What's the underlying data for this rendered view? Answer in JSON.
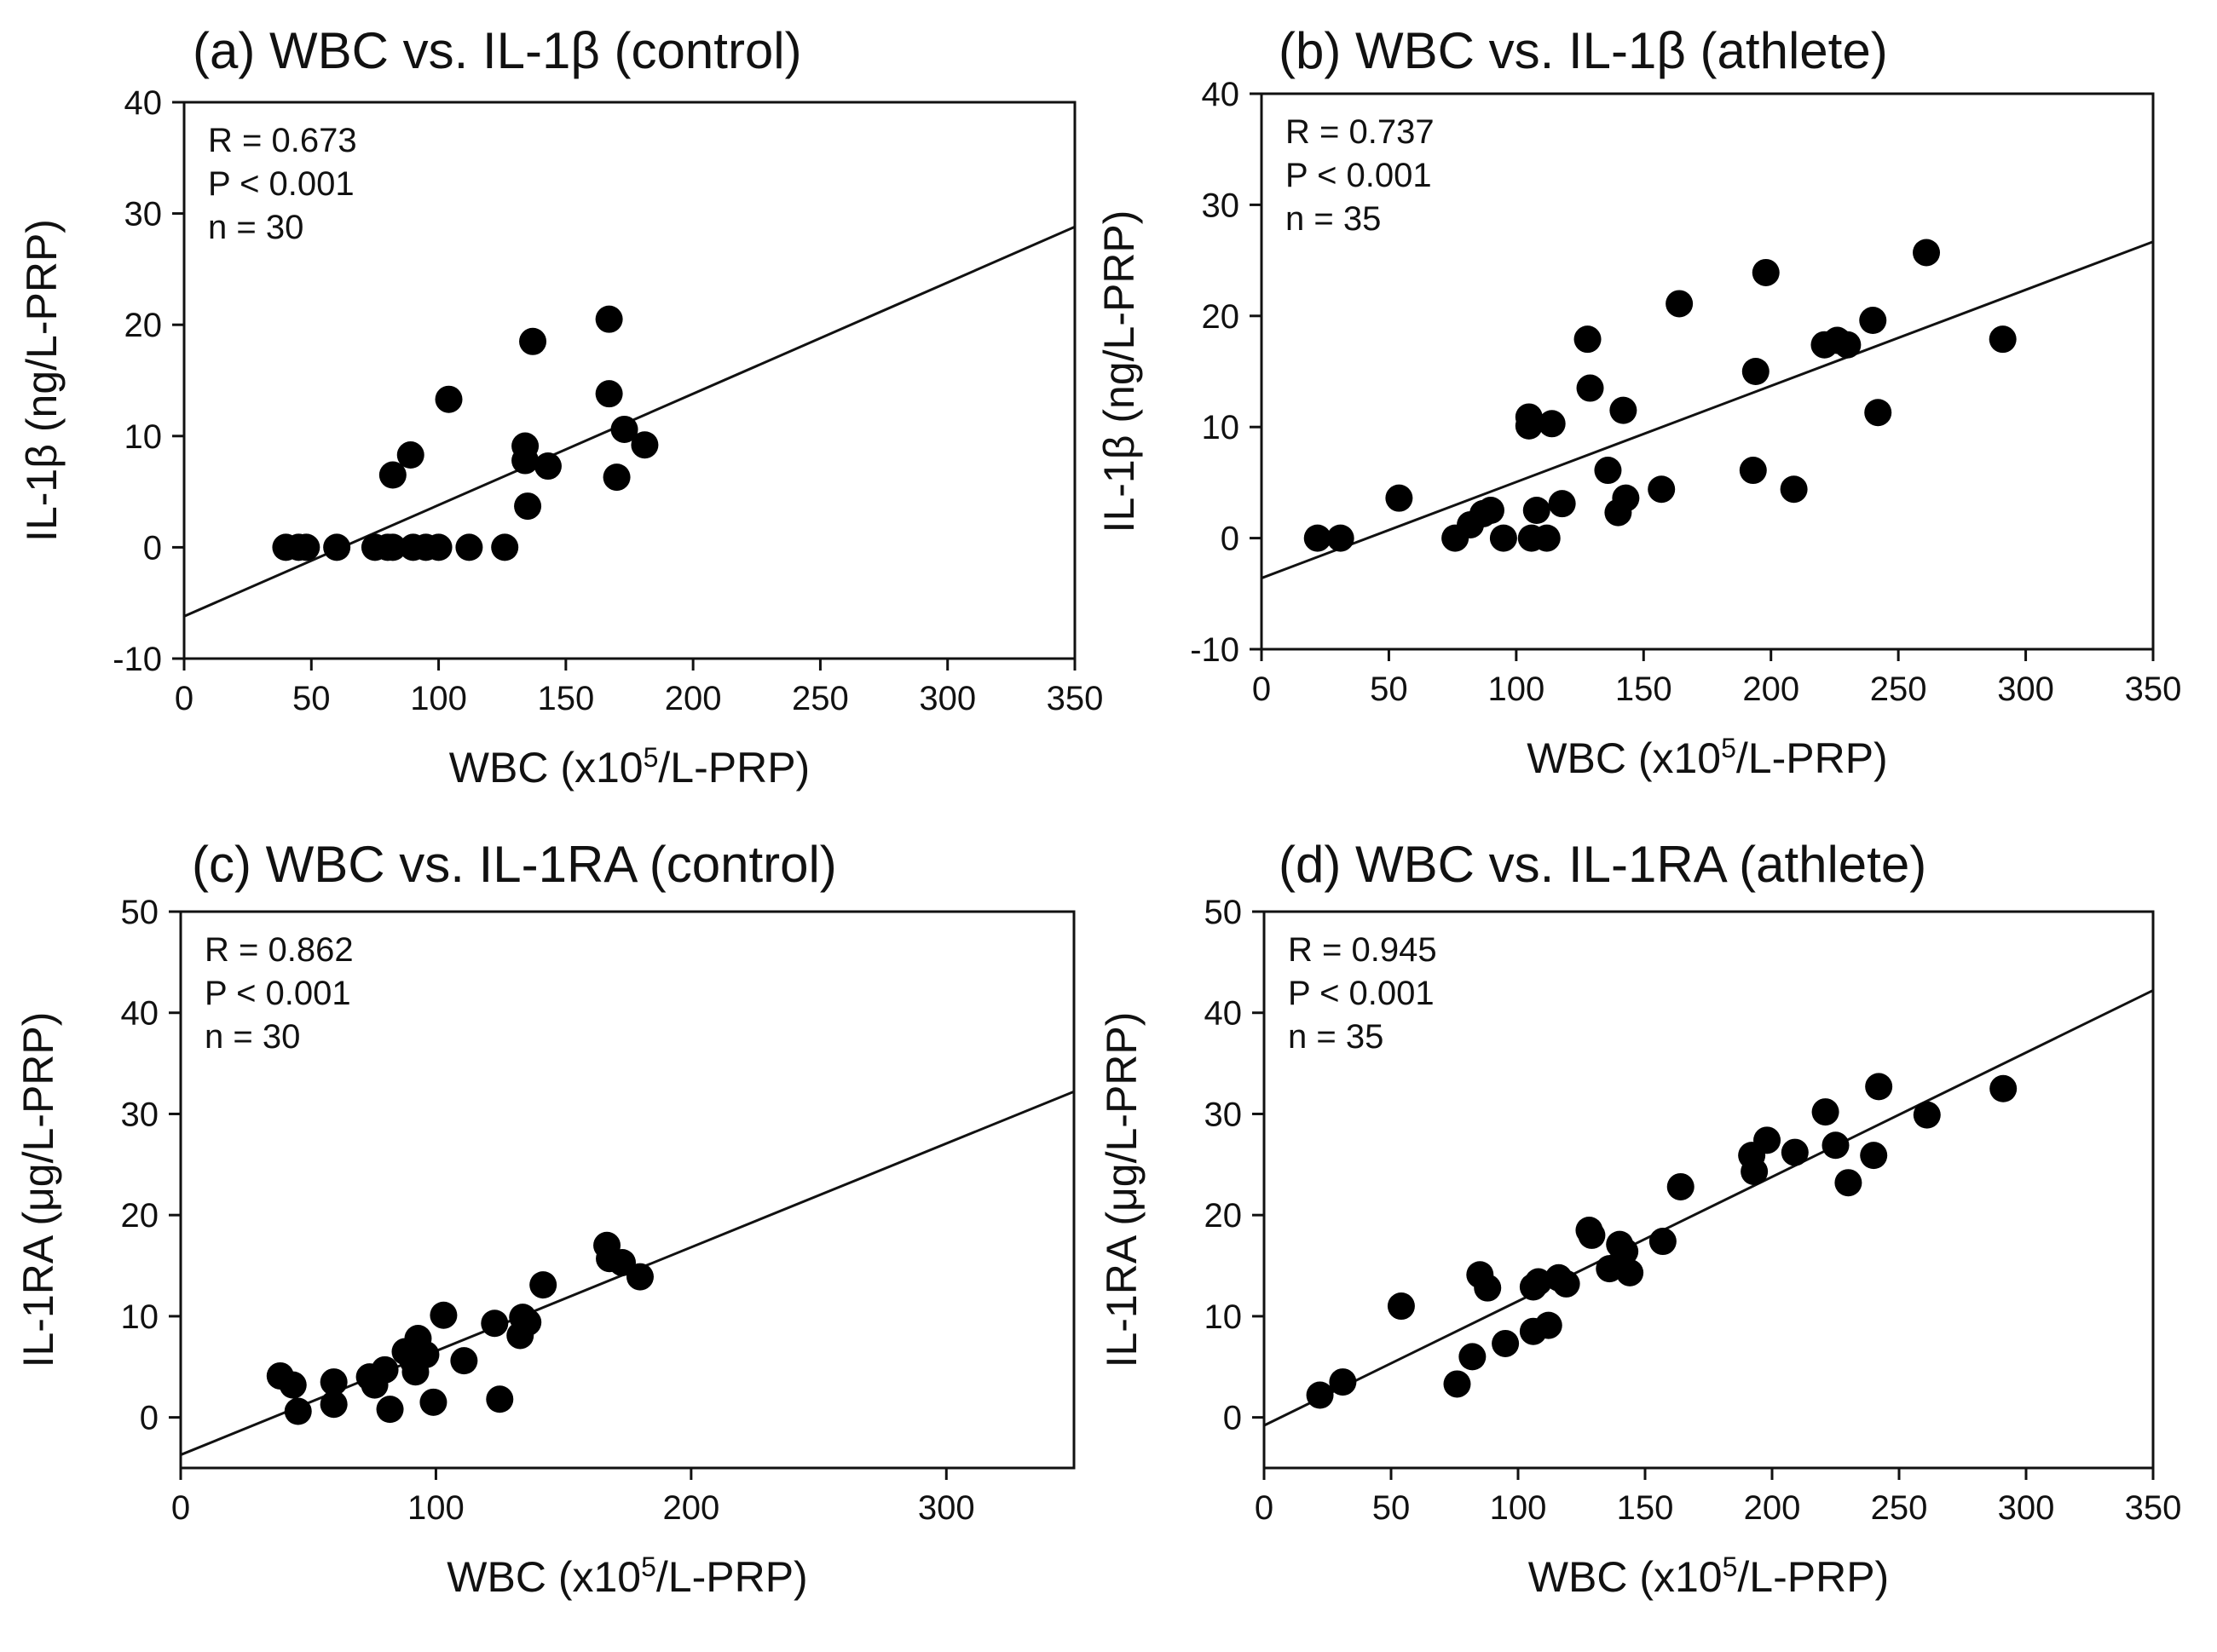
{
  "chart_data": [
    {
      "panel": "a",
      "type": "scatter",
      "title": "(a) WBC vs. IL-1β (control)",
      "xlabel": "WBC (x10⁵/L-PRP)",
      "ylabel": "IL-1β (ng/L-PRP)",
      "xlim": [
        0,
        350
      ],
      "ylim": [
        -10,
        40
      ],
      "xticks": [
        0,
        50,
        100,
        150,
        200,
        250,
        300,
        350
      ],
      "yticks": [
        -10,
        0,
        10,
        20,
        30,
        40
      ],
      "stats": [
        "R = 0.673",
        "P < 0.001",
        "n = 30"
      ],
      "regression": {
        "slope": 0.1,
        "intercept": -6.2
      },
      "points": [
        [
          40,
          0
        ],
        [
          45,
          0
        ],
        [
          48,
          0
        ],
        [
          60,
          0
        ],
        [
          75,
          0
        ],
        [
          80,
          0
        ],
        [
          82,
          0
        ],
        [
          90,
          0
        ],
        [
          95,
          0
        ],
        [
          100,
          0
        ],
        [
          112,
          0
        ],
        [
          126,
          0
        ],
        [
          82,
          6.5
        ],
        [
          89,
          8.3
        ],
        [
          104,
          13.3
        ],
        [
          134,
          9.1
        ],
        [
          134,
          7.8
        ],
        [
          135,
          3.7
        ],
        [
          137,
          18.5
        ],
        [
          143,
          7.3
        ],
        [
          167,
          20.5
        ],
        [
          167,
          13.8
        ],
        [
          170,
          6.3
        ],
        [
          173,
          10.6
        ],
        [
          181,
          9.2
        ]
      ]
    },
    {
      "panel": "b",
      "type": "scatter",
      "title": "(b) WBC vs. IL-1β (athlete)",
      "xlabel": "WBC (x10⁵/L-PRP)",
      "ylabel": "IL-1β (ng/L-PRP)",
      "xlim": [
        0,
        350
      ],
      "ylim": [
        -10,
        40
      ],
      "xticks": [
        0,
        50,
        100,
        150,
        200,
        250,
        300,
        350
      ],
      "yticks": [
        -10,
        0,
        10,
        20,
        30,
        40
      ],
      "stats": [
        "R = 0.737",
        "P < 0.001",
        "n = 35"
      ],
      "regression": {
        "slope": 0.0865,
        "intercept": -3.6
      },
      "points": [
        [
          22,
          0
        ],
        [
          31,
          0
        ],
        [
          54,
          3.6
        ],
        [
          76,
          0
        ],
        [
          82,
          1.2
        ],
        [
          87,
          2.2
        ],
        [
          90,
          2.5
        ],
        [
          95,
          0
        ],
        [
          105,
          10.9
        ],
        [
          105,
          10.1
        ],
        [
          106,
          0
        ],
        [
          108,
          2.5
        ],
        [
          112,
          0
        ],
        [
          114,
          10.3
        ],
        [
          118,
          3.1
        ],
        [
          128,
          17.9
        ],
        [
          129,
          13.5
        ],
        [
          136,
          6.1
        ],
        [
          140,
          2.3
        ],
        [
          142,
          11.5
        ],
        [
          143,
          3.6
        ],
        [
          157,
          4.4
        ],
        [
          164,
          21.1
        ],
        [
          194,
          15
        ],
        [
          193,
          6.1
        ],
        [
          198,
          23.9
        ],
        [
          209,
          4.4
        ],
        [
          221,
          17.4
        ],
        [
          226,
          17.8
        ],
        [
          230,
          17.4
        ],
        [
          240,
          19.6
        ],
        [
          242,
          11.3
        ],
        [
          261,
          25.7
        ],
        [
          291,
          17.9
        ]
      ]
    },
    {
      "panel": "c",
      "type": "scatter",
      "title": "(c) WBC vs. IL-1RA (control)",
      "xlabel": "WBC (x10⁵/L-PRP)",
      "ylabel": "IL-1RA (μg/L-PRP)",
      "xlim": [
        0,
        350
      ],
      "ylim": [
        -5,
        50
      ],
      "xticks": [
        0,
        100,
        200,
        300
      ],
      "yticks": [
        0,
        10,
        20,
        30,
        40,
        50
      ],
      "stats": [
        "R = 0.862",
        "P < 0.001",
        "n = 30"
      ],
      "regression": {
        "slope": 0.1026,
        "intercept": -3.7
      },
      "points": [
        [
          39,
          4.1
        ],
        [
          44,
          3.2
        ],
        [
          46,
          0.6
        ],
        [
          60,
          3.5
        ],
        [
          60,
          1.3
        ],
        [
          74,
          4
        ],
        [
          76,
          3.2
        ],
        [
          80,
          4.7
        ],
        [
          82,
          0.8
        ],
        [
          88,
          6.5
        ],
        [
          91,
          5.6
        ],
        [
          93,
          7.8
        ],
        [
          92,
          4.5
        ],
        [
          96,
          6.2
        ],
        [
          99,
          1.5
        ],
        [
          103,
          10.1
        ],
        [
          111,
          5.6
        ],
        [
          123,
          9.3
        ],
        [
          125,
          1.8
        ],
        [
          133,
          8.1
        ],
        [
          134,
          9.9
        ],
        [
          136,
          9.4
        ],
        [
          142,
          13.1
        ],
        [
          167,
          17
        ],
        [
          168,
          15.7
        ],
        [
          173,
          15.3
        ],
        [
          180,
          13.9
        ]
      ]
    },
    {
      "panel": "d",
      "type": "scatter",
      "title": "(d) WBC vs. IL-1RA (athlete)",
      "xlabel": "WBC (x10⁵/L-PRP)",
      "ylabel": "IL-1RA (μg/L-PRP)",
      "xlim": [
        0,
        350
      ],
      "ylim": [
        -5,
        50
      ],
      "xticks": [
        0,
        50,
        100,
        150,
        200,
        250,
        300,
        350
      ],
      "yticks": [
        0,
        10,
        20,
        30,
        40,
        50
      ],
      "stats": [
        "R = 0.945",
        "P < 0.001",
        "n = 35"
      ],
      "regression": {
        "slope": 0.1229,
        "intercept": -0.8
      },
      "points": [
        [
          22,
          2.2
        ],
        [
          31,
          3.5
        ],
        [
          54,
          11
        ],
        [
          76,
          3.3
        ],
        [
          82,
          6
        ],
        [
          85,
          14.1
        ],
        [
          88,
          12.8
        ],
        [
          95,
          7.3
        ],
        [
          106,
          12.9
        ],
        [
          106,
          8.5
        ],
        [
          108,
          13.4
        ],
        [
          112,
          9.1
        ],
        [
          116,
          13.8
        ],
        [
          119,
          13.2
        ],
        [
          128,
          18.5
        ],
        [
          129,
          18
        ],
        [
          136,
          14.7
        ],
        [
          140,
          17.1
        ],
        [
          142,
          16.4
        ],
        [
          144,
          14.3
        ],
        [
          157,
          17.4
        ],
        [
          164,
          22.8
        ],
        [
          192,
          25.9
        ],
        [
          193,
          24.3
        ],
        [
          198,
          27.4
        ],
        [
          209,
          26.2
        ],
        [
          221,
          30.2
        ],
        [
          225,
          26.9
        ],
        [
          230,
          23.2
        ],
        [
          240,
          25.9
        ],
        [
          242,
          32.7
        ],
        [
          261,
          29.9
        ],
        [
          291,
          32.5
        ]
      ]
    }
  ]
}
